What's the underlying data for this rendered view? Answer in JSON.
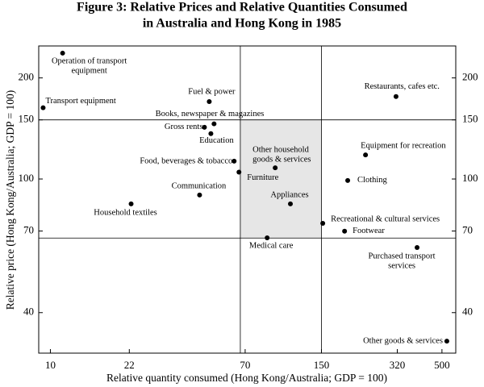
{
  "chart_data": {
    "type": "scatter",
    "title": [
      "Figure 3: Relative Prices and Relative Quantities Consumed",
      "in Australia and Hong Kong in 1985"
    ],
    "x_label": "Relative quantity consumed (Hong Kong/Australia; GDP = 100)",
    "y_label": "Relative price (Hong Kong/Australia; GDP = 100)",
    "log_x": true,
    "log_y": true,
    "xlim": [
      8.9,
      574
    ],
    "ylim": [
      30.3,
      249
    ],
    "xticks": [
      10,
      22,
      70,
      150,
      320,
      500
    ],
    "yticks": [
      40,
      70,
      100,
      150,
      200
    ],
    "reference_box": {
      "x": [
        66.7,
        150
      ],
      "y": [
        66.7,
        150
      ],
      "color": "#e6e6e6"
    },
    "color": "#000000",
    "points": [
      {
        "label": [
          "Operation of transport",
          "equipment"
        ],
        "x": 11.3,
        "y": 237
      },
      {
        "label": [
          "Transport equipment"
        ],
        "x": 9.3,
        "y": 163
      },
      {
        "label": [
          "Fuel & power"
        ],
        "x": 48.9,
        "y": 170
      },
      {
        "label": [
          "Books, newspaper & magazines"
        ],
        "x": 51.3,
        "y": 146
      },
      {
        "label": [
          "Gross rents"
        ],
        "x": 46.6,
        "y": 142.6
      },
      {
        "label": [
          "Education"
        ],
        "x": 49.7,
        "y": 136.5
      },
      {
        "label": [
          "Food, beverages & tobacco"
        ],
        "x": 62.7,
        "y": 113
      },
      {
        "label": [
          "Furniture"
        ],
        "x": 65.8,
        "y": 104.8
      },
      {
        "label": [
          "Other household",
          "goods & services"
        ],
        "x": 94.5,
        "y": 108
      },
      {
        "label": [
          "Communication"
        ],
        "x": 44.4,
        "y": 89.6
      },
      {
        "label": [
          "Household textiles"
        ],
        "x": 22.4,
        "y": 84.3
      },
      {
        "label": [
          "Appliances"
        ],
        "x": 110,
        "y": 84.3
      },
      {
        "label": [
          "Recreational & cultural services"
        ],
        "x": 152,
        "y": 73.8
      },
      {
        "label": [
          "Footwear"
        ],
        "x": 189,
        "y": 69.9
      },
      {
        "label": [
          "Medical care"
        ],
        "x": 87.2,
        "y": 66.8
      },
      {
        "label": [
          "Purchased transport",
          "services"
        ],
        "x": 390,
        "y": 62.5
      },
      {
        "label": [
          "Restaurants, cafes etc."
        ],
        "x": 316,
        "y": 176
      },
      {
        "label": [
          "Equipment for recreation"
        ],
        "x": 233,
        "y": 118
      },
      {
        "label": [
          "Clothing"
        ],
        "x": 195,
        "y": 99
      },
      {
        "label": [
          "Other goods & services"
        ],
        "x": 525,
        "y": 32.9
      }
    ]
  }
}
